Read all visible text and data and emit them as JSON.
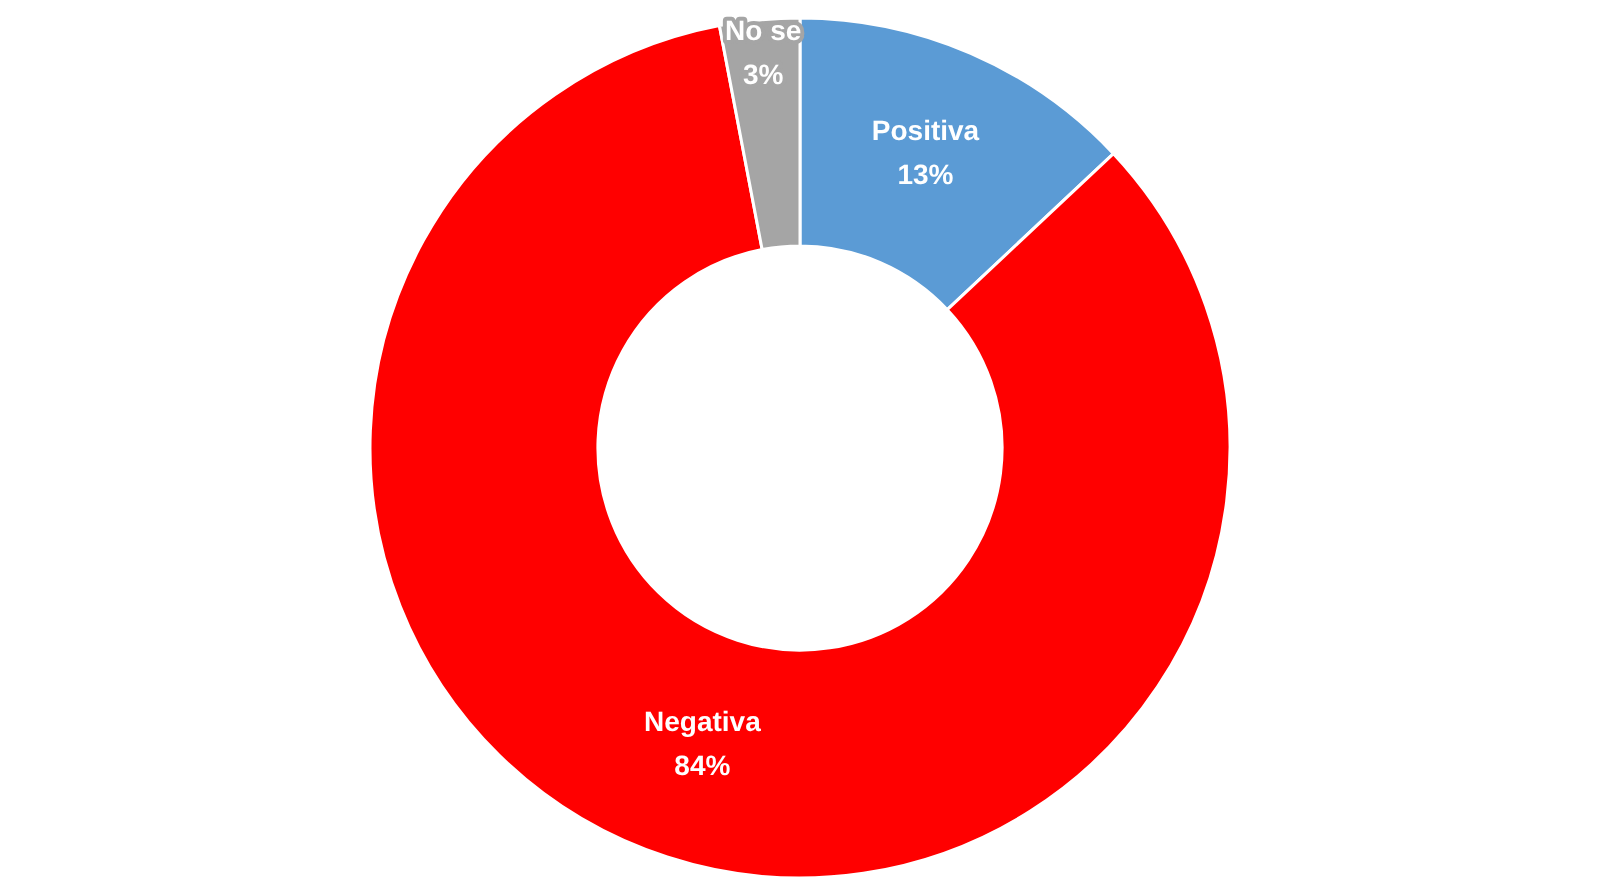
{
  "chart_data": {
    "type": "donut",
    "categories": [
      "Positiva",
      "Negativa",
      "No se"
    ],
    "values": [
      13,
      84,
      3
    ],
    "colors": [
      "#5b9bd5",
      "#ff0000",
      "#a5a5a5"
    ],
    "value_labels": [
      "13%",
      "84%",
      "3%"
    ]
  }
}
